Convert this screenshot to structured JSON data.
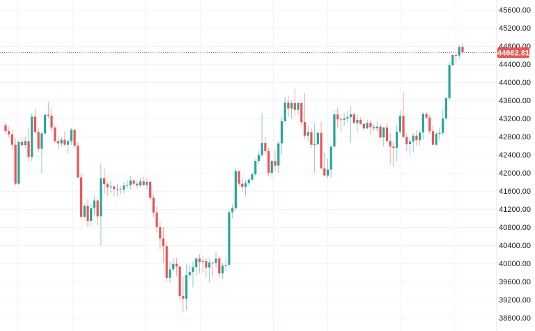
{
  "chart_data": {
    "type": "candlestick",
    "title": "",
    "xlabel": "",
    "ylabel": "",
    "ylim": [
      38570,
      45810
    ],
    "grid": true,
    "legend": "none",
    "y_ticks": [
      "45600.00",
      "45200.00",
      "44800.00",
      "44400.00",
      "44000.00",
      "43600.00",
      "43200.00",
      "42800.00",
      "42400.00",
      "42000.00",
      "41600.00",
      "41200.00",
      "40800.00",
      "40400.00",
      "40000.00",
      "39600.00",
      "39200.00",
      "38800.00"
    ],
    "last_price": "44662.81",
    "colors": {
      "up": "#26a69a",
      "down": "#ef5350",
      "price_line": "#ef5350",
      "grid": "#f0f3fa",
      "axis_text": "#131722"
    },
    "candles": [
      [
        43050,
        43110,
        42860,
        42920
      ],
      [
        42920,
        43020,
        42780,
        42850
      ],
      [
        42850,
        42940,
        42520,
        42620
      ],
      [
        42620,
        42760,
        41720,
        41760
      ],
      [
        41760,
        42720,
        41720,
        42680
      ],
      [
        42680,
        42780,
        42560,
        42610
      ],
      [
        42610,
        42800,
        42540,
        42700
      ],
      [
        42700,
        43000,
        42260,
        42350
      ],
      [
        42350,
        43320,
        42250,
        43240
      ],
      [
        43240,
        43400,
        42860,
        42900
      ],
      [
        42900,
        43000,
        42450,
        42530
      ],
      [
        42530,
        42900,
        42000,
        42870
      ],
      [
        42870,
        43320,
        42850,
        43280
      ],
      [
        43280,
        43560,
        43200,
        43260
      ],
      [
        43260,
        43420,
        42900,
        43000
      ],
      [
        43000,
        43040,
        42660,
        42700
      ],
      [
        42700,
        42780,
        42520,
        42650
      ],
      [
        42650,
        42800,
        42560,
        42730
      ],
      [
        42730,
        42920,
        42590,
        42620
      ],
      [
        42620,
        42760,
        42420,
        42700
      ],
      [
        42700,
        43000,
        42620,
        42950
      ],
      [
        42950,
        42960,
        42540,
        42600
      ],
      [
        42600,
        42680,
        41870,
        41900
      ],
      [
        41900,
        41990,
        40990,
        41030
      ],
      [
        41030,
        41320,
        41000,
        41270
      ],
      [
        41270,
        41420,
        40810,
        40940
      ],
      [
        40940,
        41320,
        40830,
        41220
      ],
      [
        41220,
        41480,
        41070,
        41390
      ],
      [
        41390,
        41430,
        40840,
        41040
      ],
      [
        41040,
        42210,
        40390,
        41880
      ],
      [
        41880,
        42090,
        41540,
        41750
      ],
      [
        41750,
        41800,
        41490,
        41680
      ],
      [
        41680,
        41830,
        41560,
        41700
      ],
      [
        41700,
        41730,
        41460,
        41640
      ],
      [
        41640,
        41760,
        41490,
        41640
      ],
      [
        41640,
        41720,
        41520,
        41630
      ],
      [
        41630,
        41800,
        41550,
        41720
      ],
      [
        41720,
        41840,
        41660,
        41730
      ],
      [
        41730,
        41930,
        41640,
        41830
      ],
      [
        41830,
        41850,
        41700,
        41760
      ],
      [
        41760,
        41840,
        41650,
        41720
      ],
      [
        41720,
        41880,
        41680,
        41810
      ],
      [
        41810,
        41910,
        41700,
        41730
      ],
      [
        41730,
        41880,
        41620,
        41800
      ],
      [
        41800,
        41830,
        41400,
        41450
      ],
      [
        41450,
        41530,
        41020,
        41120
      ],
      [
        41120,
        41260,
        40690,
        40800
      ],
      [
        40800,
        40920,
        40310,
        40550
      ],
      [
        40550,
        40800,
        40010,
        40380
      ],
      [
        40380,
        40470,
        39600,
        39680
      ],
      [
        39680,
        40050,
        39580,
        39870
      ],
      [
        39870,
        40120,
        39830,
        39990
      ],
      [
        39990,
        40120,
        39720,
        39930
      ],
      [
        39930,
        39960,
        39190,
        39280
      ],
      [
        39280,
        39700,
        38930,
        39220
      ],
      [
        39220,
        39980,
        38960,
        39740
      ],
      [
        39740,
        39950,
        39680,
        39810
      ],
      [
        39810,
        40040,
        39470,
        39920
      ],
      [
        39920,
        40100,
        39730,
        40110
      ],
      [
        40110,
        40200,
        39780,
        40030
      ],
      [
        40030,
        40180,
        39800,
        40050
      ],
      [
        40050,
        40120,
        39690,
        39910
      ],
      [
        39910,
        40100,
        39580,
        40020
      ],
      [
        40020,
        40040,
        39700,
        40010
      ],
      [
        40010,
        40250,
        39900,
        40110
      ],
      [
        40110,
        40160,
        39670,
        39780
      ],
      [
        39780,
        40000,
        39650,
        39950
      ],
      [
        39950,
        40160,
        39830,
        39970
      ],
      [
        39970,
        41190,
        39930,
        41130
      ],
      [
        41130,
        41300,
        41000,
        41220
      ],
      [
        41220,
        42110,
        41170,
        42040
      ],
      [
        42040,
        42030,
        41700,
        41760
      ],
      [
        41760,
        41900,
        41580,
        41690
      ],
      [
        41690,
        41840,
        41490,
        41770
      ],
      [
        41770,
        41880,
        41710,
        41850
      ],
      [
        41850,
        42000,
        41820,
        41970
      ],
      [
        41970,
        42300,
        41930,
        42260
      ],
      [
        42260,
        42480,
        42200,
        42390
      ],
      [
        42390,
        43300,
        42350,
        42660
      ],
      [
        42660,
        42780,
        42420,
        42480
      ],
      [
        42480,
        42550,
        41930,
        42000
      ],
      [
        42000,
        42280,
        41900,
        42260
      ],
      [
        42260,
        42500,
        42030,
        42160
      ],
      [
        42160,
        42700,
        42000,
        42650
      ],
      [
        42650,
        43250,
        42390,
        43140
      ],
      [
        43140,
        43680,
        43100,
        43550
      ],
      [
        43550,
        43700,
        43230,
        43420
      ],
      [
        43420,
        43590,
        43190,
        43540
      ],
      [
        43540,
        43850,
        43250,
        43390
      ],
      [
        43390,
        43570,
        43280,
        43540
      ],
      [
        43540,
        43560,
        43060,
        43120
      ],
      [
        43120,
        43760,
        42750,
        42820
      ],
      [
        42820,
        43040,
        42700,
        42900
      ],
      [
        42900,
        43000,
        42550,
        42620
      ],
      [
        42620,
        43100,
        42000,
        42630
      ],
      [
        42630,
        42940,
        42600,
        42880
      ],
      [
        42880,
        43130,
        42080,
        42100
      ],
      [
        42100,
        42450,
        41960,
        41940
      ],
      [
        41940,
        42320,
        41890,
        42070
      ],
      [
        42070,
        42520,
        41890,
        42580
      ],
      [
        42580,
        43380,
        42550,
        43290
      ],
      [
        43290,
        43440,
        43000,
        43180
      ],
      [
        43180,
        43260,
        42900,
        43170
      ],
      [
        43170,
        43320,
        43040,
        43200
      ],
      [
        43200,
        43370,
        43120,
        43230
      ],
      [
        43230,
        43470,
        42670,
        43290
      ],
      [
        43290,
        43340,
        43080,
        43100
      ],
      [
        43100,
        43290,
        42910,
        43170
      ],
      [
        43170,
        43230,
        43050,
        43080
      ],
      [
        43080,
        43110,
        42940,
        42980
      ],
      [
        42980,
        43170,
        42960,
        43100
      ],
      [
        43100,
        43160,
        42840,
        43010
      ],
      [
        43010,
        43080,
        42930,
        42980
      ],
      [
        42980,
        43130,
        42900,
        43020
      ],
      [
        43020,
        43080,
        42760,
        42780
      ],
      [
        42780,
        43010,
        42580,
        43000
      ],
      [
        43000,
        43100,
        42950,
        42700
      ],
      [
        42700,
        42880,
        42200,
        42580
      ],
      [
        42580,
        42680,
        42120,
        42550
      ],
      [
        42550,
        43060,
        42250,
        42910
      ],
      [
        42910,
        43370,
        42860,
        43260
      ],
      [
        43260,
        43760,
        42810,
        42790
      ],
      [
        42790,
        42870,
        42480,
        42630
      ],
      [
        42630,
        42780,
        42390,
        42690
      ],
      [
        42690,
        42880,
        42450,
        42820
      ],
      [
        42820,
        42950,
        42600,
        42720
      ],
      [
        42720,
        42920,
        42600,
        42890
      ],
      [
        42890,
        43350,
        42730,
        43300
      ],
      [
        43300,
        43340,
        43180,
        43220
      ],
      [
        43220,
        43280,
        42850,
        42920
      ],
      [
        42920,
        43040,
        42680,
        42620
      ],
      [
        42620,
        42910,
        42600,
        42860
      ],
      [
        42860,
        43000,
        42720,
        42880
      ],
      [
        42880,
        43410,
        42830,
        43200
      ],
      [
        43200,
        43660,
        43150,
        43650
      ],
      [
        43650,
        44450,
        43600,
        44380
      ],
      [
        44380,
        44560,
        44350,
        44600
      ],
      [
        44600,
        44620,
        44410,
        44590
      ],
      [
        44590,
        44820,
        44520,
        44780
      ],
      [
        44780,
        44860,
        44620,
        44660
      ]
    ]
  }
}
